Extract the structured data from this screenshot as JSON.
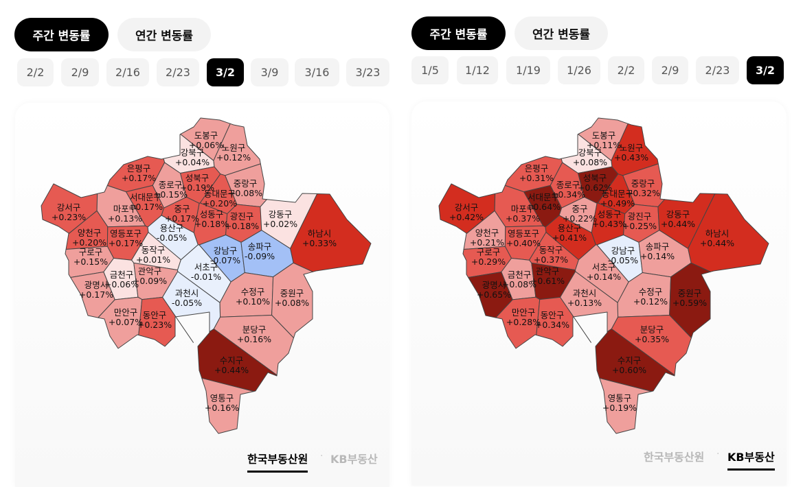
{
  "panels": [
    {
      "toggles": [
        {
          "label": "주간 변동률",
          "active": true
        },
        {
          "label": "연간 변동률",
          "active": false
        }
      ],
      "dates": [
        {
          "label": "2/2",
          "active": false
        },
        {
          "label": "2/9",
          "active": false
        },
        {
          "label": "2/16",
          "active": false
        },
        {
          "label": "2/23",
          "active": false
        },
        {
          "label": "3/2",
          "active": true
        },
        {
          "label": "3/9",
          "active": false
        },
        {
          "label": "3/16",
          "active": false
        },
        {
          "label": "3/23",
          "active": false
        }
      ],
      "sources": [
        {
          "label": "한국부동산원",
          "active": true
        },
        {
          "label": "KB부동산",
          "active": false
        }
      ],
      "separator": "·",
      "regions": [
        {
          "name": "도봉구",
          "value": "+0.06%",
          "color": "#ef9f9c"
        },
        {
          "name": "노원구",
          "value": "+0.12%",
          "color": "#ef9f9c"
        },
        {
          "name": "강북구",
          "value": "+0.04%",
          "color": "#fbe2e1"
        },
        {
          "name": "은평구",
          "value": "+0.17%",
          "color": "#e65a52"
        },
        {
          "name": "성북구",
          "value": "+0.19%",
          "color": "#e65a52"
        },
        {
          "name": "종로구",
          "value": "+0.15%",
          "color": "#ef9f9c"
        },
        {
          "name": "중랑구",
          "value": "+0.08%",
          "color": "#ef9f9c"
        },
        {
          "name": "서대문구",
          "value": "+0.17%",
          "color": "#e65a52"
        },
        {
          "name": "동대문구",
          "value": "+0.20%",
          "color": "#e65a52"
        },
        {
          "name": "강서구",
          "value": "+0.23%",
          "color": "#e65a52"
        },
        {
          "name": "마포구",
          "value": "+0.13%",
          "color": "#ef9f9c"
        },
        {
          "name": "중구",
          "value": "+0.17%",
          "color": "#e65a52"
        },
        {
          "name": "성동구",
          "value": "+0.18%",
          "color": "#e65a52"
        },
        {
          "name": "광진구",
          "value": "+0.18%",
          "color": "#e65a52"
        },
        {
          "name": "강동구",
          "value": "+0.02%",
          "color": "#fbe2e1"
        },
        {
          "name": "하남시",
          "value": "+0.33%",
          "color": "#d32d1f"
        },
        {
          "name": "용산구",
          "value": "-0.05%",
          "color": "#e6eefc"
        },
        {
          "name": "양천구",
          "value": "+0.20%",
          "color": "#e65a52"
        },
        {
          "name": "영등포구",
          "value": "+0.17%",
          "color": "#e65a52"
        },
        {
          "name": "강남구",
          "value": "-0.07%",
          "color": "#a3c0f6"
        },
        {
          "name": "송파구",
          "value": "-0.09%",
          "color": "#a3c0f6"
        },
        {
          "name": "동작구",
          "value": "+0.01%",
          "color": "#fbe2e1"
        },
        {
          "name": "구로구",
          "value": "+0.15%",
          "color": "#ef9f9c"
        },
        {
          "name": "서초구",
          "value": "-0.01%",
          "color": "#e9f0fc"
        },
        {
          "name": "금천구",
          "value": "+0.06%",
          "color": "#fbe2e1"
        },
        {
          "name": "관악구",
          "value": "+0.09%",
          "color": "#ef9f9c"
        },
        {
          "name": "광명시",
          "value": "+0.17%",
          "color": "#ef9f9c"
        },
        {
          "name": "과천시",
          "value": "-0.05%",
          "color": "#e6eefc"
        },
        {
          "name": "수정구",
          "value": "+0.10%",
          "color": "#ef9f9c"
        },
        {
          "name": "중원구",
          "value": "+0.08%",
          "color": "#ef9f9c"
        },
        {
          "name": "만안구",
          "value": "+0.07%",
          "color": "#ef9f9c"
        },
        {
          "name": "동안구",
          "value": "+0.23%",
          "color": "#e65a52"
        },
        {
          "name": "분당구",
          "value": "+0.16%",
          "color": "#ef9f9c"
        },
        {
          "name": "수지구",
          "value": "+0.44%",
          "color": "#8b1a11"
        },
        {
          "name": "영통구",
          "value": "+0.16%",
          "color": "#ef9f9c"
        }
      ]
    },
    {
      "toggles": [
        {
          "label": "주간 변동률",
          "active": true
        },
        {
          "label": "연간 변동률",
          "active": false
        }
      ],
      "dates": [
        {
          "label": "1/5",
          "active": false
        },
        {
          "label": "1/12",
          "active": false
        },
        {
          "label": "1/19",
          "active": false
        },
        {
          "label": "1/26",
          "active": false
        },
        {
          "label": "2/2",
          "active": false
        },
        {
          "label": "2/9",
          "active": false
        },
        {
          "label": "2/23",
          "active": false
        },
        {
          "label": "3/2",
          "active": true
        }
      ],
      "sources": [
        {
          "label": "한국부동산원",
          "active": false
        },
        {
          "label": "KB부동산",
          "active": true
        }
      ],
      "separator": "·",
      "regions": [
        {
          "name": "도봉구",
          "value": "+0.11%",
          "color": "#ef9f9c"
        },
        {
          "name": "노원구",
          "value": "+0.43%",
          "color": "#d32d1f"
        },
        {
          "name": "강북구",
          "value": "+0.08%",
          "color": "#fbe2e1"
        },
        {
          "name": "은평구",
          "value": "+0.31%",
          "color": "#e65a52"
        },
        {
          "name": "성북구",
          "value": "+0.62%",
          "color": "#8b1a11"
        },
        {
          "name": "종로구",
          "value": "+0.34%",
          "color": "#e65a52"
        },
        {
          "name": "중랑구",
          "value": "+0.32%",
          "color": "#e65a52"
        },
        {
          "name": "서대문구",
          "value": "+0.64%",
          "color": "#8b1a11"
        },
        {
          "name": "동대문구",
          "value": "+0.49%",
          "color": "#d32d1f"
        },
        {
          "name": "강서구",
          "value": "+0.42%",
          "color": "#d32d1f"
        },
        {
          "name": "마포구",
          "value": "+0.37%",
          "color": "#e65a52"
        },
        {
          "name": "중구",
          "value": "+0.22%",
          "color": "#ef9f9c"
        },
        {
          "name": "성동구",
          "value": "+0.43%",
          "color": "#d32d1f"
        },
        {
          "name": "광진구",
          "value": "+0.25%",
          "color": "#e65a52"
        },
        {
          "name": "강동구",
          "value": "+0.44%",
          "color": "#d32d1f"
        },
        {
          "name": "하남시",
          "value": "+0.44%",
          "color": "#d32d1f"
        },
        {
          "name": "용산구",
          "value": "+0.41%",
          "color": "#d32d1f"
        },
        {
          "name": "양천구",
          "value": "+0.21%",
          "color": "#ef9f9c"
        },
        {
          "name": "영등포구",
          "value": "+0.40%",
          "color": "#e65a52"
        },
        {
          "name": "강남구",
          "value": "-0.05%",
          "color": "#e6eefc"
        },
        {
          "name": "송파구",
          "value": "+0.14%",
          "color": "#ef9f9c"
        },
        {
          "name": "동작구",
          "value": "+0.37%",
          "color": "#e65a52"
        },
        {
          "name": "구로구",
          "value": "+0.29%",
          "color": "#e65a52"
        },
        {
          "name": "서초구",
          "value": "+0.14%",
          "color": "#ef9f9c"
        },
        {
          "name": "금천구",
          "value": "+0.08%",
          "color": "#ef9f9c"
        },
        {
          "name": "관악구",
          "value": "+0.61%",
          "color": "#8b1a11"
        },
        {
          "name": "광명시",
          "value": "+0.65%",
          "color": "#8b1a11"
        },
        {
          "name": "과천시",
          "value": "+0.13%",
          "color": "#ef9f9c"
        },
        {
          "name": "수정구",
          "value": "+0.12%",
          "color": "#ef9f9c"
        },
        {
          "name": "중원구",
          "value": "+0.59%",
          "color": "#8b1a11"
        },
        {
          "name": "만안구",
          "value": "+0.28%",
          "color": "#e65a52"
        },
        {
          "name": "동안구",
          "value": "+0.34%",
          "color": "#e65a52"
        },
        {
          "name": "분당구",
          "value": "+0.35%",
          "color": "#e65a52"
        },
        {
          "name": "수지구",
          "value": "+0.60%",
          "color": "#8b1a11"
        },
        {
          "name": "영통구",
          "value": "+0.19%",
          "color": "#ef9f9c"
        }
      ]
    }
  ]
}
